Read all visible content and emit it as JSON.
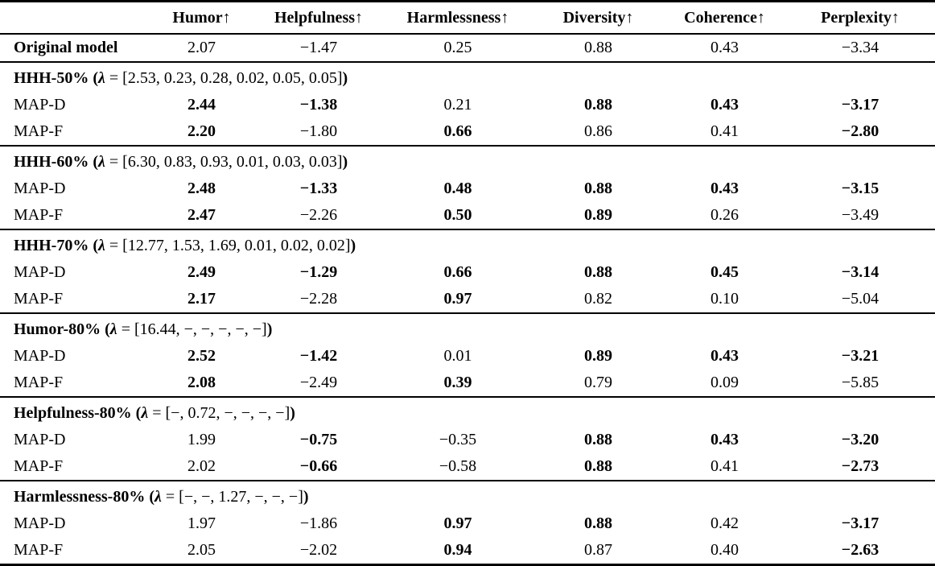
{
  "table": {
    "columns": [
      "Humor↑",
      "Helpfulness↑",
      "Harmlessness↑",
      "Diversity↑",
      "Coherence↑",
      "Perplexity↑"
    ],
    "glue": {
      "open": " (",
      "lambda_symbol": "λ",
      "equals": " = ",
      "close": ")"
    },
    "original": {
      "label": "Original model",
      "values": [
        {
          "v": "2.07",
          "b": false
        },
        {
          "v": "−1.47",
          "b": false
        },
        {
          "v": "0.25",
          "b": false
        },
        {
          "v": "0.88",
          "b": false
        },
        {
          "v": "0.43",
          "b": false
        },
        {
          "v": "−3.34",
          "b": false
        }
      ]
    },
    "sections": [
      {
        "name": "HHH-50%",
        "lambda": "[2.53, 0.23, 0.28, 0.02, 0.05, 0.05]",
        "rows": [
          {
            "label": "MAP-D",
            "values": [
              {
                "v": "2.44",
                "b": true
              },
              {
                "v": "−1.38",
                "b": true
              },
              {
                "v": "0.21",
                "b": false
              },
              {
                "v": "0.88",
                "b": true
              },
              {
                "v": "0.43",
                "b": true
              },
              {
                "v": "−3.17",
                "b": true
              }
            ]
          },
          {
            "label": "MAP-F",
            "values": [
              {
                "v": "2.20",
                "b": true
              },
              {
                "v": "−1.80",
                "b": false
              },
              {
                "v": "0.66",
                "b": true
              },
              {
                "v": "0.86",
                "b": false
              },
              {
                "v": "0.41",
                "b": false
              },
              {
                "v": "−2.80",
                "b": true
              }
            ]
          }
        ]
      },
      {
        "name": "HHH-60%",
        "lambda": "[6.30, 0.83, 0.93, 0.01, 0.03, 0.03]",
        "rows": [
          {
            "label": "MAP-D",
            "values": [
              {
                "v": "2.48",
                "b": true
              },
              {
                "v": "−1.33",
                "b": true
              },
              {
                "v": "0.48",
                "b": true
              },
              {
                "v": "0.88",
                "b": true
              },
              {
                "v": "0.43",
                "b": true
              },
              {
                "v": "−3.15",
                "b": true
              }
            ]
          },
          {
            "label": "MAP-F",
            "values": [
              {
                "v": "2.47",
                "b": true
              },
              {
                "v": "−2.26",
                "b": false
              },
              {
                "v": "0.50",
                "b": true
              },
              {
                "v": "0.89",
                "b": true
              },
              {
                "v": "0.26",
                "b": false
              },
              {
                "v": "−3.49",
                "b": false
              }
            ]
          }
        ]
      },
      {
        "name": "HHH-70%",
        "lambda": "[12.77, 1.53, 1.69, 0.01, 0.02, 0.02]",
        "rows": [
          {
            "label": "MAP-D",
            "values": [
              {
                "v": "2.49",
                "b": true
              },
              {
                "v": "−1.29",
                "b": true
              },
              {
                "v": "0.66",
                "b": true
              },
              {
                "v": "0.88",
                "b": true
              },
              {
                "v": "0.45",
                "b": true
              },
              {
                "v": "−3.14",
                "b": true
              }
            ]
          },
          {
            "label": "MAP-F",
            "values": [
              {
                "v": "2.17",
                "b": true
              },
              {
                "v": "−2.28",
                "b": false
              },
              {
                "v": "0.97",
                "b": true
              },
              {
                "v": "0.82",
                "b": false
              },
              {
                "v": "0.10",
                "b": false
              },
              {
                "v": "−5.04",
                "b": false
              }
            ]
          }
        ]
      },
      {
        "name": "Humor-80%",
        "lambda": "[16.44, −, −, −, −, −]",
        "rows": [
          {
            "label": "MAP-D",
            "values": [
              {
                "v": "2.52",
                "b": true
              },
              {
                "v": "−1.42",
                "b": true
              },
              {
                "v": "0.01",
                "b": false
              },
              {
                "v": "0.89",
                "b": true
              },
              {
                "v": "0.43",
                "b": true
              },
              {
                "v": "−3.21",
                "b": true
              }
            ]
          },
          {
            "label": "MAP-F",
            "values": [
              {
                "v": "2.08",
                "b": true
              },
              {
                "v": "−2.49",
                "b": false
              },
              {
                "v": "0.39",
                "b": true
              },
              {
                "v": "0.79",
                "b": false
              },
              {
                "v": "0.09",
                "b": false
              },
              {
                "v": "−5.85",
                "b": false
              }
            ]
          }
        ]
      },
      {
        "name": "Helpfulness-80%",
        "lambda": "[−, 0.72, −, −, −, −]",
        "rows": [
          {
            "label": "MAP-D",
            "values": [
              {
                "v": "1.99",
                "b": false
              },
              {
                "v": "−0.75",
                "b": true
              },
              {
                "v": "−0.35",
                "b": false
              },
              {
                "v": "0.88",
                "b": true
              },
              {
                "v": "0.43",
                "b": true
              },
              {
                "v": "−3.20",
                "b": true
              }
            ]
          },
          {
            "label": "MAP-F",
            "values": [
              {
                "v": "2.02",
                "b": false
              },
              {
                "v": "−0.66",
                "b": true
              },
              {
                "v": "−0.58",
                "b": false
              },
              {
                "v": "0.88",
                "b": true
              },
              {
                "v": "0.41",
                "b": false
              },
              {
                "v": "−2.73",
                "b": true
              }
            ]
          }
        ]
      },
      {
        "name": "Harmlessness-80%",
        "lambda": "[−, −, 1.27, −, −, −]",
        "rows": [
          {
            "label": "MAP-D",
            "values": [
              {
                "v": "1.97",
                "b": false
              },
              {
                "v": "−1.86",
                "b": false
              },
              {
                "v": "0.97",
                "b": true
              },
              {
                "v": "0.88",
                "b": true
              },
              {
                "v": "0.42",
                "b": false
              },
              {
                "v": "−3.17",
                "b": true
              }
            ]
          },
          {
            "label": "MAP-F",
            "values": [
              {
                "v": "2.05",
                "b": false
              },
              {
                "v": "−2.02",
                "b": false
              },
              {
                "v": "0.94",
                "b": true
              },
              {
                "v": "0.87",
                "b": false
              },
              {
                "v": "0.40",
                "b": false
              },
              {
                "v": "−2.63",
                "b": true
              }
            ]
          }
        ]
      }
    ]
  }
}
